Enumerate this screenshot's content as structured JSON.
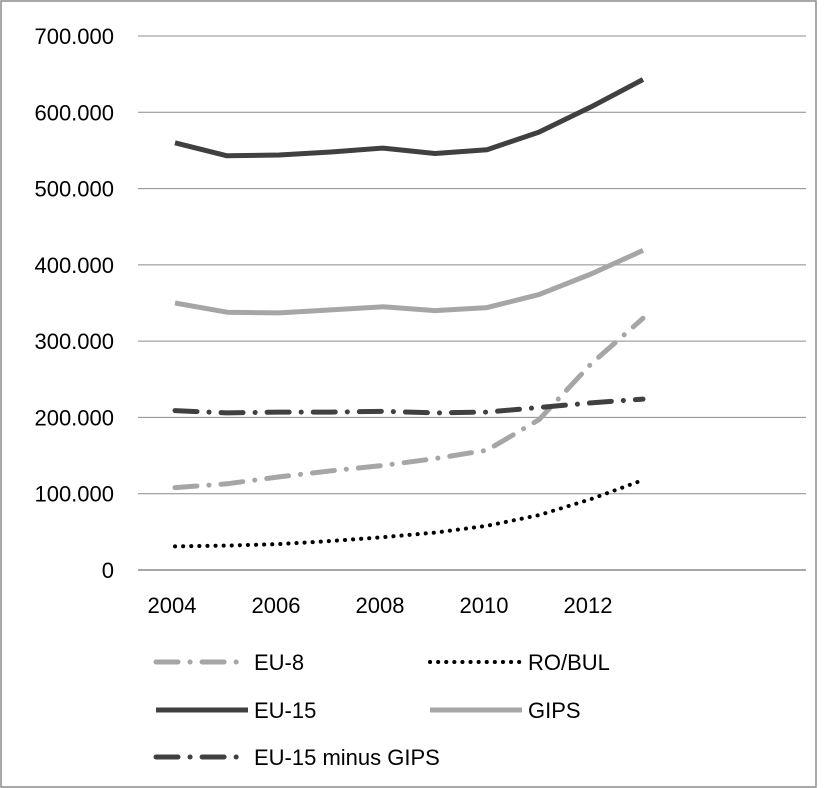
{
  "chart_data": {
    "type": "line",
    "x": [
      2004,
      2005,
      2006,
      2007,
      2008,
      2009,
      2010,
      2011,
      2012,
      2013
    ],
    "x_ticks": [
      "2004",
      "2006",
      "2008",
      "2010",
      "2012"
    ],
    "y_ticks": [
      "0",
      "100.000",
      "200.000",
      "300.000",
      "400.000",
      "500.000",
      "600.000",
      "700.000"
    ],
    "ylim": [
      0,
      700000
    ],
    "grid": "horizontal",
    "legend_position": "bottom",
    "series": [
      {
        "name": "EU-8",
        "color": "#a6a6a6",
        "style": "dash-dot",
        "values": [
          108000,
          113000,
          122000,
          130000,
          137000,
          146000,
          157000,
          197000,
          270000,
          330000
        ]
      },
      {
        "name": "RO/BUL",
        "color": "#000000",
        "style": "dotted",
        "values": [
          31000,
          32000,
          34000,
          38000,
          43000,
          49000,
          58000,
          72000,
          93000,
          118000
        ]
      },
      {
        "name": "EU-15",
        "color": "#404040",
        "style": "solid",
        "values": [
          560000,
          543000,
          544000,
          548000,
          553000,
          546000,
          551000,
          574000,
          607000,
          643000
        ]
      },
      {
        "name": "GIPS",
        "color": "#a6a6a6",
        "style": "solid",
        "values": [
          350000,
          338000,
          337000,
          341000,
          345000,
          340000,
          344000,
          361000,
          388000,
          419000
        ]
      },
      {
        "name": "EU-15 minus GIPS",
        "color": "#404040",
        "style": "dash-dot",
        "values": [
          209000,
          206000,
          207000,
          207000,
          208000,
          206000,
          207000,
          213000,
          219000,
          224000
        ]
      }
    ]
  }
}
